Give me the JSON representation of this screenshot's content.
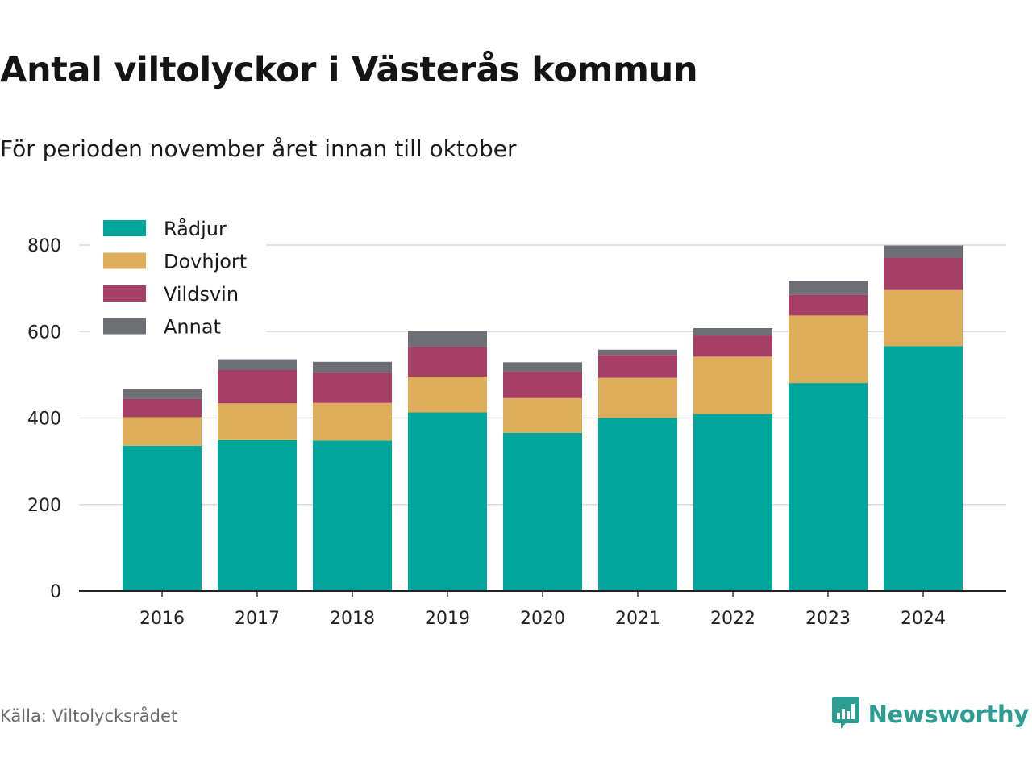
{
  "header": {
    "title": "Antal viltolyckor i Västerås kommun",
    "subtitle": "För perioden november året innan till oktober"
  },
  "footer": {
    "source": "Källa: Viltolycksrådet",
    "brand": "Newsworthy",
    "brand_icon": "bar-chart-icon",
    "brand_color": "#2b9d92"
  },
  "chart_data": {
    "type": "bar",
    "stacked": true,
    "categories": [
      "2016",
      "2017",
      "2018",
      "2019",
      "2020",
      "2021",
      "2022",
      "2023",
      "2024"
    ],
    "series": [
      {
        "name": "Rådjur",
        "color": "#00a59b",
        "values": [
          336,
          349,
          348,
          413,
          366,
          400,
          409,
          481,
          566
        ]
      },
      {
        "name": "Dovhjort",
        "color": "#ddad5a",
        "values": [
          66,
          85,
          87,
          83,
          80,
          93,
          133,
          156,
          130
        ]
      },
      {
        "name": "Vildsvin",
        "color": "#a63f66",
        "values": [
          42,
          77,
          70,
          68,
          61,
          53,
          49,
          48,
          75
        ]
      },
      {
        "name": "Annat",
        "color": "#6e6e75",
        "values": [
          24,
          25,
          25,
          38,
          22,
          12,
          17,
          32,
          28
        ]
      }
    ],
    "yticks": [
      0,
      200,
      400,
      600,
      800
    ],
    "ylim": [
      0,
      900
    ],
    "grid": true,
    "legend": "top-left"
  }
}
